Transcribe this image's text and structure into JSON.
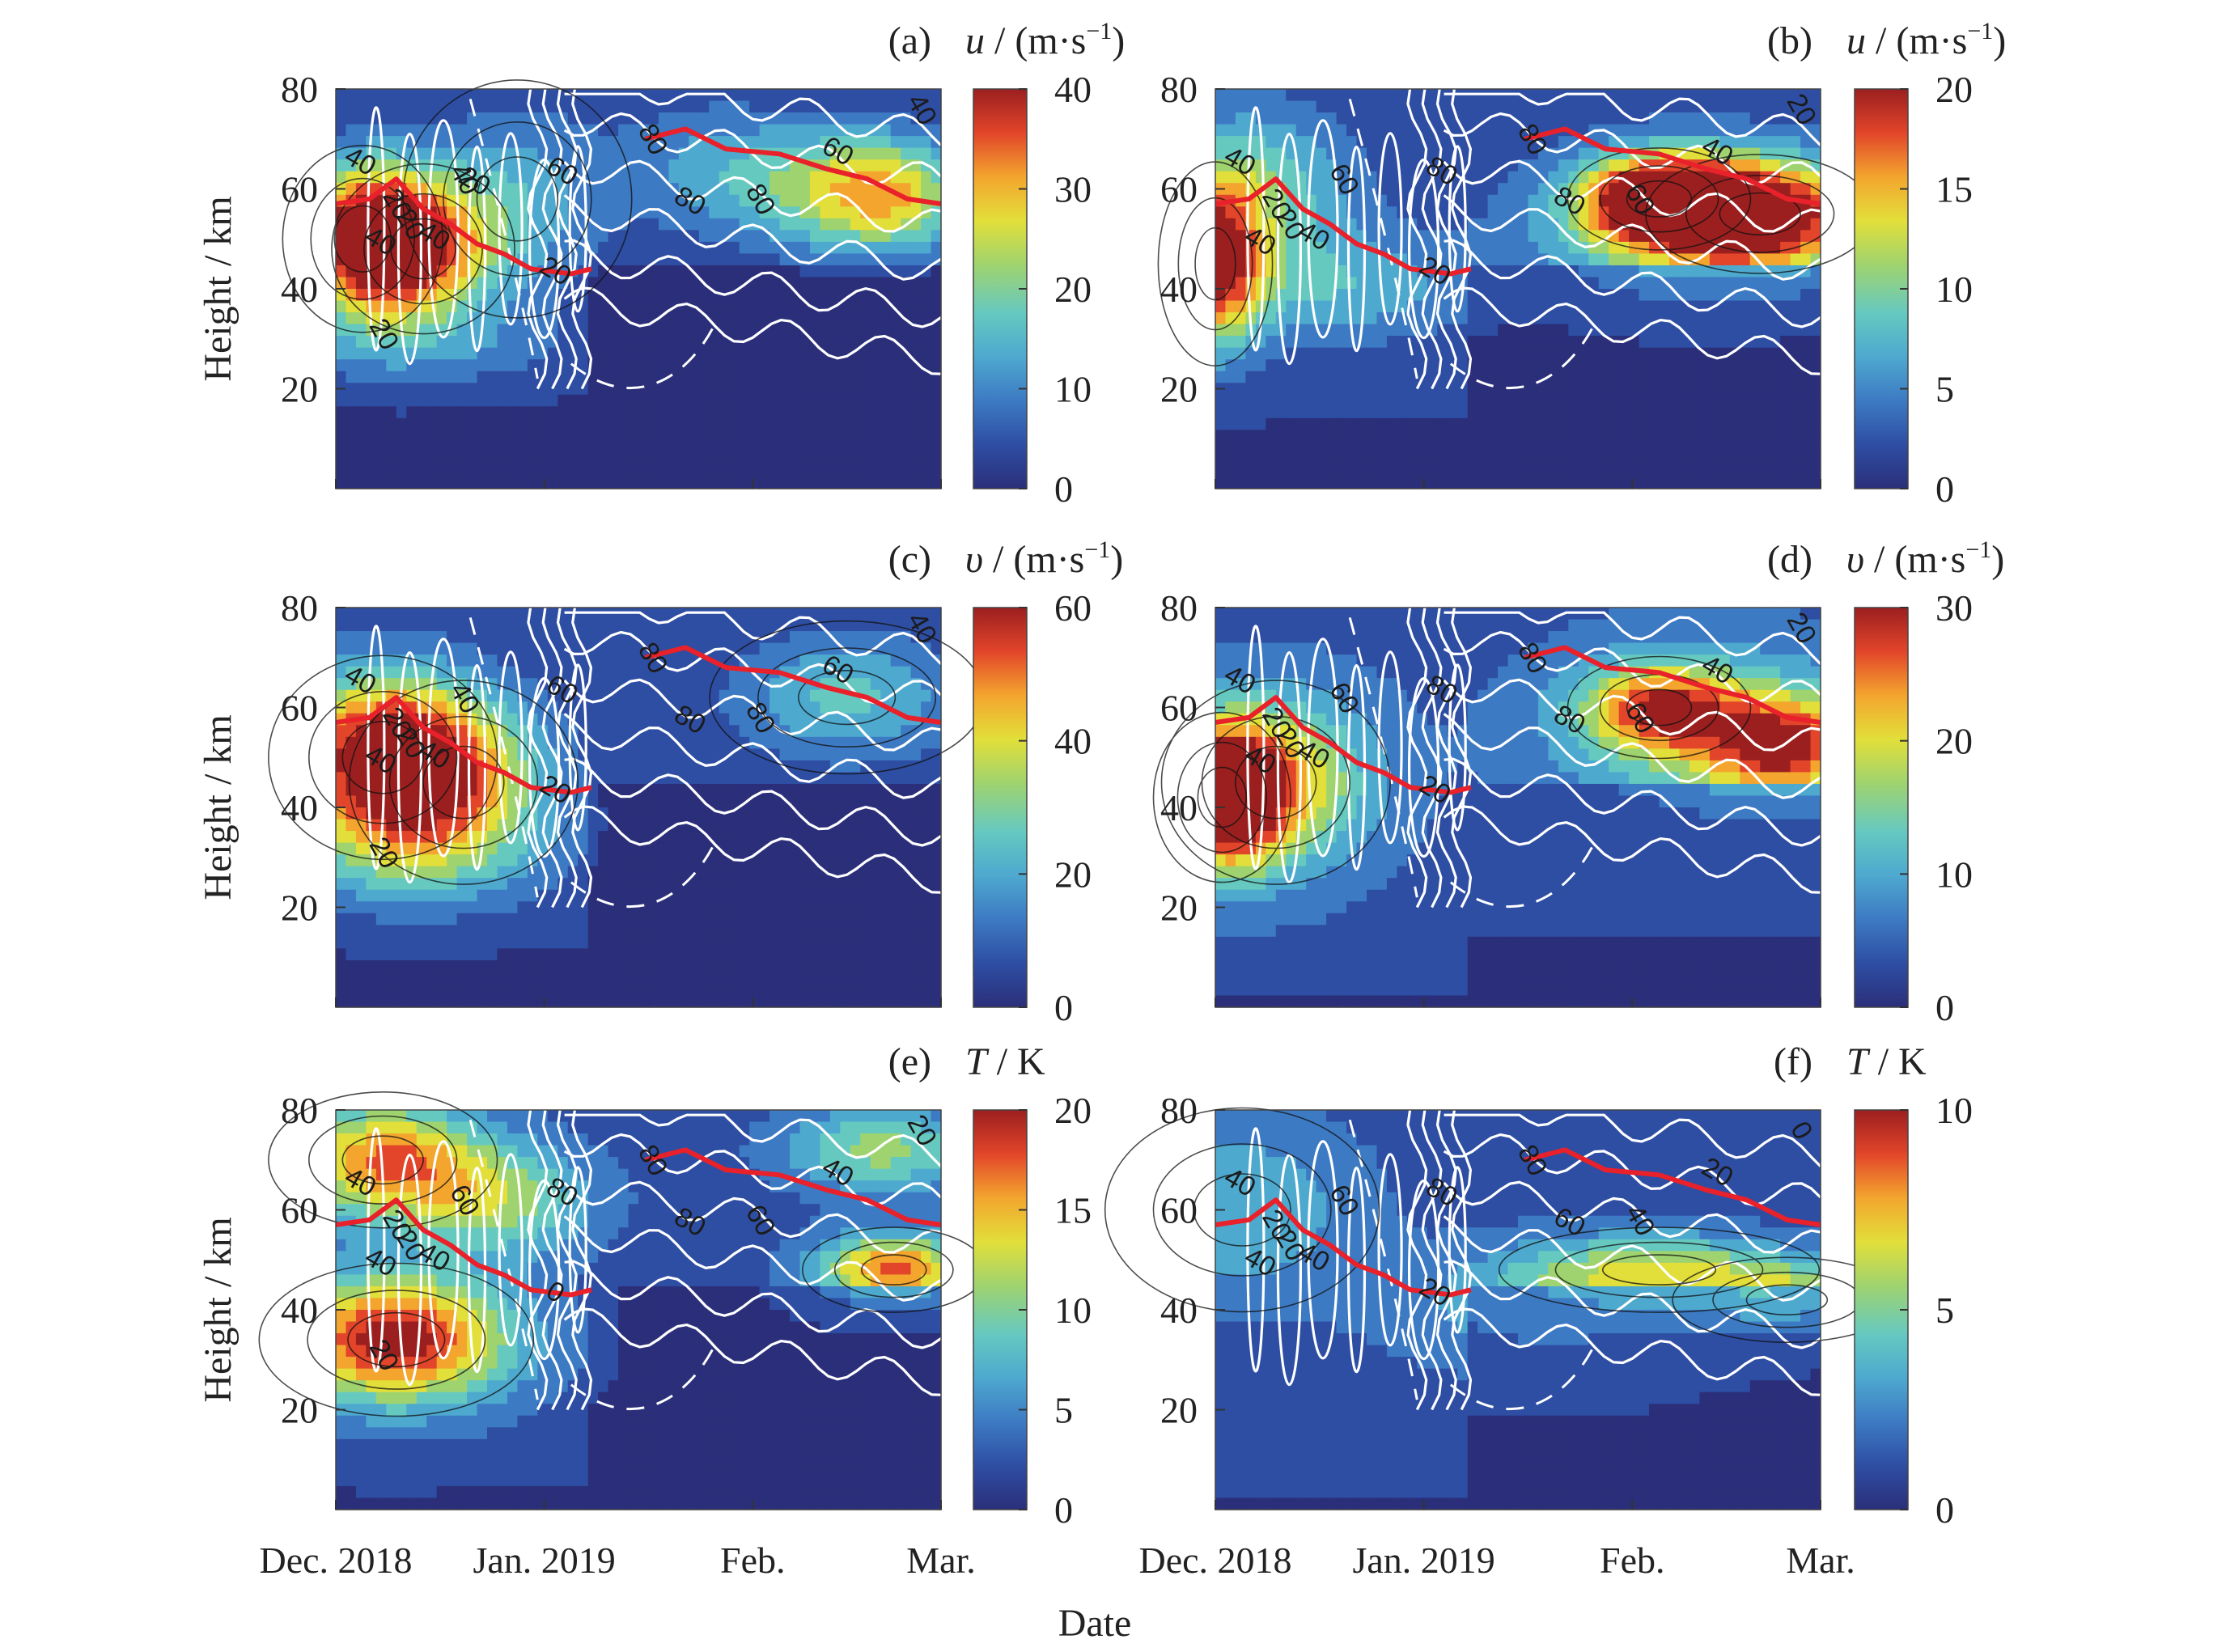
{
  "chart_data": [
    {
      "panel": "(a)",
      "type": "heatmap",
      "colorbar_label": "u / (m·s⁻¹)",
      "colorbar_var": "u",
      "colorbar_unit": " / (m·s",
      "colorbar_ticks": [
        "40",
        "30",
        "20",
        "10",
        "0"
      ],
      "vmax": 40,
      "ylabel": "Height / km",
      "yticks": [
        "80",
        "60",
        "40",
        "20"
      ],
      "ylim": [
        0,
        80
      ],
      "xticks": [],
      "xlim": [
        "2018-12-01",
        "2019-03-01"
      ],
      "contour_labels": [
        "40",
        "20",
        "40",
        "20",
        "40",
        "40",
        "60",
        "80",
        "80",
        "80",
        "60",
        "40",
        "20",
        "20",
        "20"
      ],
      "blobs": [
        {
          "date": "2018-12-05",
          "height_km": 50,
          "value": 35,
          "sx_days": 7,
          "sy_km": 11
        },
        {
          "date": "2018-12-14",
          "height_km": 48,
          "value": 26,
          "sx_days": 8,
          "sy_km": 10
        },
        {
          "date": "2018-12-28",
          "height_km": 58,
          "value": 12,
          "sx_days": 10,
          "sy_km": 14
        },
        {
          "date": "2019-02-14",
          "height_km": 60,
          "value": 18,
          "sx_days": 12,
          "sy_km": 9
        },
        {
          "date": "2019-02-22",
          "height_km": 58,
          "value": 15,
          "sx_days": 8,
          "sy_km": 8
        },
        {
          "date": "2019-01-25",
          "height_km": 65,
          "value": 9,
          "sx_days": 10,
          "sy_km": 10
        },
        {
          "date": "2018-12-15",
          "height_km": 28,
          "value": 8,
          "sx_days": 18,
          "sy_km": 6
        }
      ],
      "base_value": 3,
      "red_line": [
        [
          "2018-12-01",
          57
        ],
        [
          "2018-12-06",
          58
        ],
        [
          "2018-12-10",
          62
        ],
        [
          "2018-12-14",
          56
        ],
        [
          "2018-12-18",
          53
        ],
        [
          "2018-12-22",
          49
        ],
        [
          "2018-12-26",
          47
        ],
        [
          "2018-12-30",
          44
        ],
        [
          "2019-01-05",
          43
        ],
        [
          "2019-01-08",
          44
        ],
        null,
        [
          "2019-01-16",
          70
        ],
        [
          "2019-01-22",
          72
        ],
        [
          "2019-01-28",
          68
        ],
        [
          "2019-02-05",
          67
        ],
        [
          "2019-02-12",
          64
        ],
        [
          "2019-02-18",
          62
        ],
        [
          "2019-02-24",
          58
        ],
        [
          "2019-03-01",
          57
        ]
      ]
    },
    {
      "panel": "(b)",
      "type": "heatmap",
      "colorbar_label": "u / (m·s⁻¹)",
      "colorbar_var": "u",
      "colorbar_unit": " / (m·s",
      "colorbar_ticks": [
        "20",
        "15",
        "10",
        "5",
        "0"
      ],
      "vmax": 20,
      "ylabel": "",
      "yticks": [
        "80",
        "60",
        "40",
        "20"
      ],
      "ylim": [
        0,
        80
      ],
      "xticks": [],
      "xlim": [
        "2018-12-01",
        "2019-03-01"
      ],
      "contour_labels": [
        "40",
        "20",
        "40",
        "20",
        "40",
        "60",
        "80",
        "80",
        "80",
        "60",
        "40",
        "20",
        "20"
      ],
      "blobs": [
        {
          "date": "2018-12-01",
          "height_km": 45,
          "value": 16,
          "sx_days": 5,
          "sy_km": 12
        },
        {
          "date": "2019-02-05",
          "height_km": 58,
          "value": 17,
          "sx_days": 8,
          "sy_km": 6
        },
        {
          "date": "2019-02-20",
          "height_km": 55,
          "value": 15,
          "sx_days": 10,
          "sy_km": 7
        },
        {
          "date": "2019-02-12",
          "height_km": 52,
          "value": 10,
          "sx_days": 18,
          "sy_km": 12
        },
        {
          "date": "2018-12-08",
          "height_km": 60,
          "value": 8,
          "sx_days": 10,
          "sy_km": 12
        },
        {
          "date": "2018-12-20",
          "height_km": 40,
          "value": 6,
          "sx_days": 14,
          "sy_km": 8
        }
      ],
      "base_value": 2,
      "red_line": [
        [
          "2018-12-01",
          57
        ],
        [
          "2018-12-06",
          58
        ],
        [
          "2018-12-10",
          62
        ],
        [
          "2018-12-14",
          56
        ],
        [
          "2018-12-18",
          53
        ],
        [
          "2018-12-22",
          49
        ],
        [
          "2018-12-26",
          47
        ],
        [
          "2018-12-30",
          44
        ],
        [
          "2019-01-05",
          43
        ],
        [
          "2019-01-08",
          44
        ],
        null,
        [
          "2019-01-16",
          70
        ],
        [
          "2019-01-22",
          72
        ],
        [
          "2019-01-28",
          68
        ],
        [
          "2019-02-05",
          67
        ],
        [
          "2019-02-12",
          64
        ],
        [
          "2019-02-18",
          62
        ],
        [
          "2019-02-24",
          58
        ],
        [
          "2019-03-01",
          57
        ]
      ]
    },
    {
      "panel": "(c)",
      "type": "heatmap",
      "colorbar_label": "υ / (m·s⁻¹)",
      "colorbar_var": "υ",
      "colorbar_unit": " / (m·s",
      "colorbar_ticks": [
        "60",
        "40",
        "20",
        "0"
      ],
      "vmax": 60,
      "ylabel": "Height / km",
      "yticks": [
        "80",
        "60",
        "40",
        "20"
      ],
      "ylim": [
        0,
        80
      ],
      "xticks": [],
      "xlim": [
        "2018-12-01",
        "2019-03-01"
      ],
      "contour_labels": [
        "40",
        "20",
        "40",
        "20",
        "40",
        "40",
        "60",
        "80",
        "80",
        "80",
        "60",
        "40",
        "20",
        "20"
      ],
      "blobs": [
        {
          "date": "2018-12-08",
          "height_km": 50,
          "value": 55,
          "sx_days": 10,
          "sy_km": 12
        },
        {
          "date": "2018-12-20",
          "height_km": 45,
          "value": 30,
          "sx_days": 10,
          "sy_km": 12
        },
        {
          "date": "2019-02-15",
          "height_km": 62,
          "value": 22,
          "sx_days": 12,
          "sy_km": 9
        },
        {
          "date": "2018-12-10",
          "height_km": 30,
          "value": 15,
          "sx_days": 16,
          "sy_km": 8
        }
      ],
      "base_value": 6,
      "red_line": [
        [
          "2018-12-01",
          57
        ],
        [
          "2018-12-06",
          58
        ],
        [
          "2018-12-10",
          62
        ],
        [
          "2018-12-14",
          56
        ],
        [
          "2018-12-18",
          53
        ],
        [
          "2018-12-22",
          49
        ],
        [
          "2018-12-26",
          47
        ],
        [
          "2018-12-30",
          44
        ],
        [
          "2019-01-05",
          43
        ],
        [
          "2019-01-08",
          44
        ],
        null,
        [
          "2019-01-16",
          70
        ],
        [
          "2019-01-22",
          72
        ],
        [
          "2019-01-28",
          68
        ],
        [
          "2019-02-05",
          67
        ],
        [
          "2019-02-12",
          64
        ],
        [
          "2019-02-18",
          62
        ],
        [
          "2019-02-24",
          58
        ],
        [
          "2019-03-01",
          57
        ]
      ]
    },
    {
      "panel": "(d)",
      "type": "heatmap",
      "colorbar_label": "υ / (m·s⁻¹)",
      "colorbar_var": "υ",
      "colorbar_unit": " / (m·s",
      "colorbar_ticks": [
        "30",
        "20",
        "10",
        "0"
      ],
      "vmax": 30,
      "ylabel": "",
      "yticks": [
        "80",
        "60",
        "40",
        "20"
      ],
      "ylim": [
        0,
        80
      ],
      "xticks": [],
      "xlim": [
        "2018-12-01",
        "2019-03-01"
      ],
      "contour_labels": [
        "40",
        "20",
        "40",
        "20",
        "40",
        "60",
        "80",
        "80",
        "80",
        "60",
        "40",
        "20",
        "20"
      ],
      "blobs": [
        {
          "date": "2018-12-02",
          "height_km": 42,
          "value": 26,
          "sx_days": 6,
          "sy_km": 10
        },
        {
          "date": "2018-12-10",
          "height_km": 45,
          "value": 18,
          "sx_days": 10,
          "sy_km": 12
        },
        {
          "date": "2019-02-05",
          "height_km": 60,
          "value": 18,
          "sx_days": 8,
          "sy_km": 6
        },
        {
          "date": "2019-02-24",
          "height_km": 52,
          "value": 20,
          "sx_days": 8,
          "sy_km": 7
        },
        {
          "date": "2019-02-12",
          "height_km": 55,
          "value": 12,
          "sx_days": 16,
          "sy_km": 12
        }
      ],
      "base_value": 5,
      "red_line": [
        [
          "2018-12-01",
          57
        ],
        [
          "2018-12-06",
          58
        ],
        [
          "2018-12-10",
          62
        ],
        [
          "2018-12-14",
          56
        ],
        [
          "2018-12-18",
          53
        ],
        [
          "2018-12-22",
          49
        ],
        [
          "2018-12-26",
          47
        ],
        [
          "2018-12-30",
          44
        ],
        [
          "2019-01-05",
          43
        ],
        [
          "2019-01-08",
          44
        ],
        null,
        [
          "2019-01-16",
          70
        ],
        [
          "2019-01-22",
          72
        ],
        [
          "2019-01-28",
          68
        ],
        [
          "2019-02-05",
          67
        ],
        [
          "2019-02-12",
          64
        ],
        [
          "2019-02-18",
          62
        ],
        [
          "2019-02-24",
          58
        ],
        [
          "2019-03-01",
          57
        ]
      ]
    },
    {
      "panel": "(e)",
      "type": "heatmap",
      "colorbar_label": "T / K",
      "colorbar_var": "T",
      "colorbar_unit": " / K",
      "colorbar_ticks": [
        "20",
        "15",
        "10",
        "5",
        "0"
      ],
      "vmax": 20,
      "ylabel": "Height / km",
      "yticks": [
        "80",
        "60",
        "40",
        "20"
      ],
      "ylim": [
        0,
        80
      ],
      "xticks": [
        "Dec. 2018",
        "Jan. 2019",
        "Feb.",
        "Mar."
      ],
      "xlim": [
        "2018-12-01",
        "2019-03-01"
      ],
      "contour_labels": [
        "40",
        "20",
        "40",
        "20",
        "40",
        "60",
        "80",
        "80",
        "80",
        "60",
        "40",
        "20",
        "0",
        "20"
      ],
      "blobs": [
        {
          "date": "2018-12-10",
          "height_km": 34,
          "value": 18,
          "sx_days": 12,
          "sy_km": 9
        },
        {
          "date": "2018-12-08",
          "height_km": 70,
          "value": 14,
          "sx_days": 10,
          "sy_km": 8
        },
        {
          "date": "2019-02-22",
          "height_km": 48,
          "value": 15,
          "sx_days": 8,
          "sy_km": 5
        },
        {
          "date": "2018-12-25",
          "height_km": 62,
          "value": 9,
          "sx_days": 10,
          "sy_km": 8
        },
        {
          "date": "2019-02-20",
          "height_km": 72,
          "value": 9,
          "sx_days": 10,
          "sy_km": 6
        }
      ],
      "base_value": 3,
      "red_line": [
        [
          "2018-12-01",
          57
        ],
        [
          "2018-12-06",
          58
        ],
        [
          "2018-12-10",
          62
        ],
        [
          "2018-12-14",
          56
        ],
        [
          "2018-12-18",
          53
        ],
        [
          "2018-12-22",
          49
        ],
        [
          "2018-12-26",
          47
        ],
        [
          "2018-12-30",
          44
        ],
        [
          "2019-01-05",
          43
        ],
        [
          "2019-01-08",
          44
        ],
        null,
        [
          "2019-01-16",
          70
        ],
        [
          "2019-01-22",
          72
        ],
        [
          "2019-01-28",
          68
        ],
        [
          "2019-02-05",
          67
        ],
        [
          "2019-02-12",
          64
        ],
        [
          "2019-02-18",
          62
        ],
        [
          "2019-02-24",
          58
        ],
        [
          "2019-03-01",
          57
        ]
      ]
    },
    {
      "panel": "(f)",
      "type": "heatmap",
      "colorbar_label": "T / K",
      "colorbar_var": "T",
      "colorbar_unit": " / K",
      "colorbar_ticks": [
        "10",
        "5",
        "0"
      ],
      "vmax": 10,
      "ylabel": "",
      "yticks": [
        "80",
        "60",
        "40",
        "20"
      ],
      "ylim": [
        0,
        80
      ],
      "xticks": [
        "Dec. 2018",
        "Jan. 2019",
        "Feb.",
        "Mar."
      ],
      "xlim": [
        "2018-12-01",
        "2019-03-01"
      ],
      "contour_labels": [
        "40",
        "20",
        "40",
        "20",
        "40",
        "60",
        "80",
        "80",
        "60",
        "40",
        "20",
        "0",
        "20"
      ],
      "blobs": [
        {
          "date": "2019-02-05",
          "height_km": 48,
          "value": 4.5,
          "sx_days": 14,
          "sy_km": 5
        },
        {
          "date": "2019-02-24",
          "height_km": 42,
          "value": 4.5,
          "sx_days": 10,
          "sy_km": 5
        },
        {
          "date": "2018-12-05",
          "height_km": 60,
          "value": 3,
          "sx_days": 12,
          "sy_km": 12
        },
        {
          "date": "2019-01-20",
          "height_km": 40,
          "value": 3,
          "sx_days": 15,
          "sy_km": 8
        }
      ],
      "base_value": 1.6,
      "red_line": [
        [
          "2018-12-01",
          57
        ],
        [
          "2018-12-06",
          58
        ],
        [
          "2018-12-10",
          62
        ],
        [
          "2018-12-14",
          56
        ],
        [
          "2018-12-18",
          53
        ],
        [
          "2018-12-22",
          49
        ],
        [
          "2018-12-26",
          47
        ],
        [
          "2018-12-30",
          44
        ],
        [
          "2019-01-05",
          43
        ],
        [
          "2019-01-08",
          44
        ],
        null,
        [
          "2019-01-16",
          70
        ],
        [
          "2019-01-22",
          72
        ],
        [
          "2019-01-28",
          68
        ],
        [
          "2019-02-05",
          67
        ],
        [
          "2019-02-12",
          64
        ],
        [
          "2019-02-18",
          62
        ],
        [
          "2019-02-24",
          58
        ],
        [
          "2019-03-01",
          57
        ]
      ]
    }
  ],
  "xlabel": "Date",
  "xtick_dates": [
    "2018-12-01",
    "2019-01-01",
    "2019-02-01",
    "2019-03-01"
  ],
  "colors": {
    "colormap": [
      "#2b2f7a",
      "#2e4ea3",
      "#3d7ac4",
      "#4ea9cf",
      "#66c9c0",
      "#9fd36f",
      "#e2df3a",
      "#f3a52e",
      "#e2452a",
      "#9b1f1f"
    ],
    "red_line": "#e8212a",
    "white_contour": "#ffffff",
    "black_contour": "#111111"
  }
}
